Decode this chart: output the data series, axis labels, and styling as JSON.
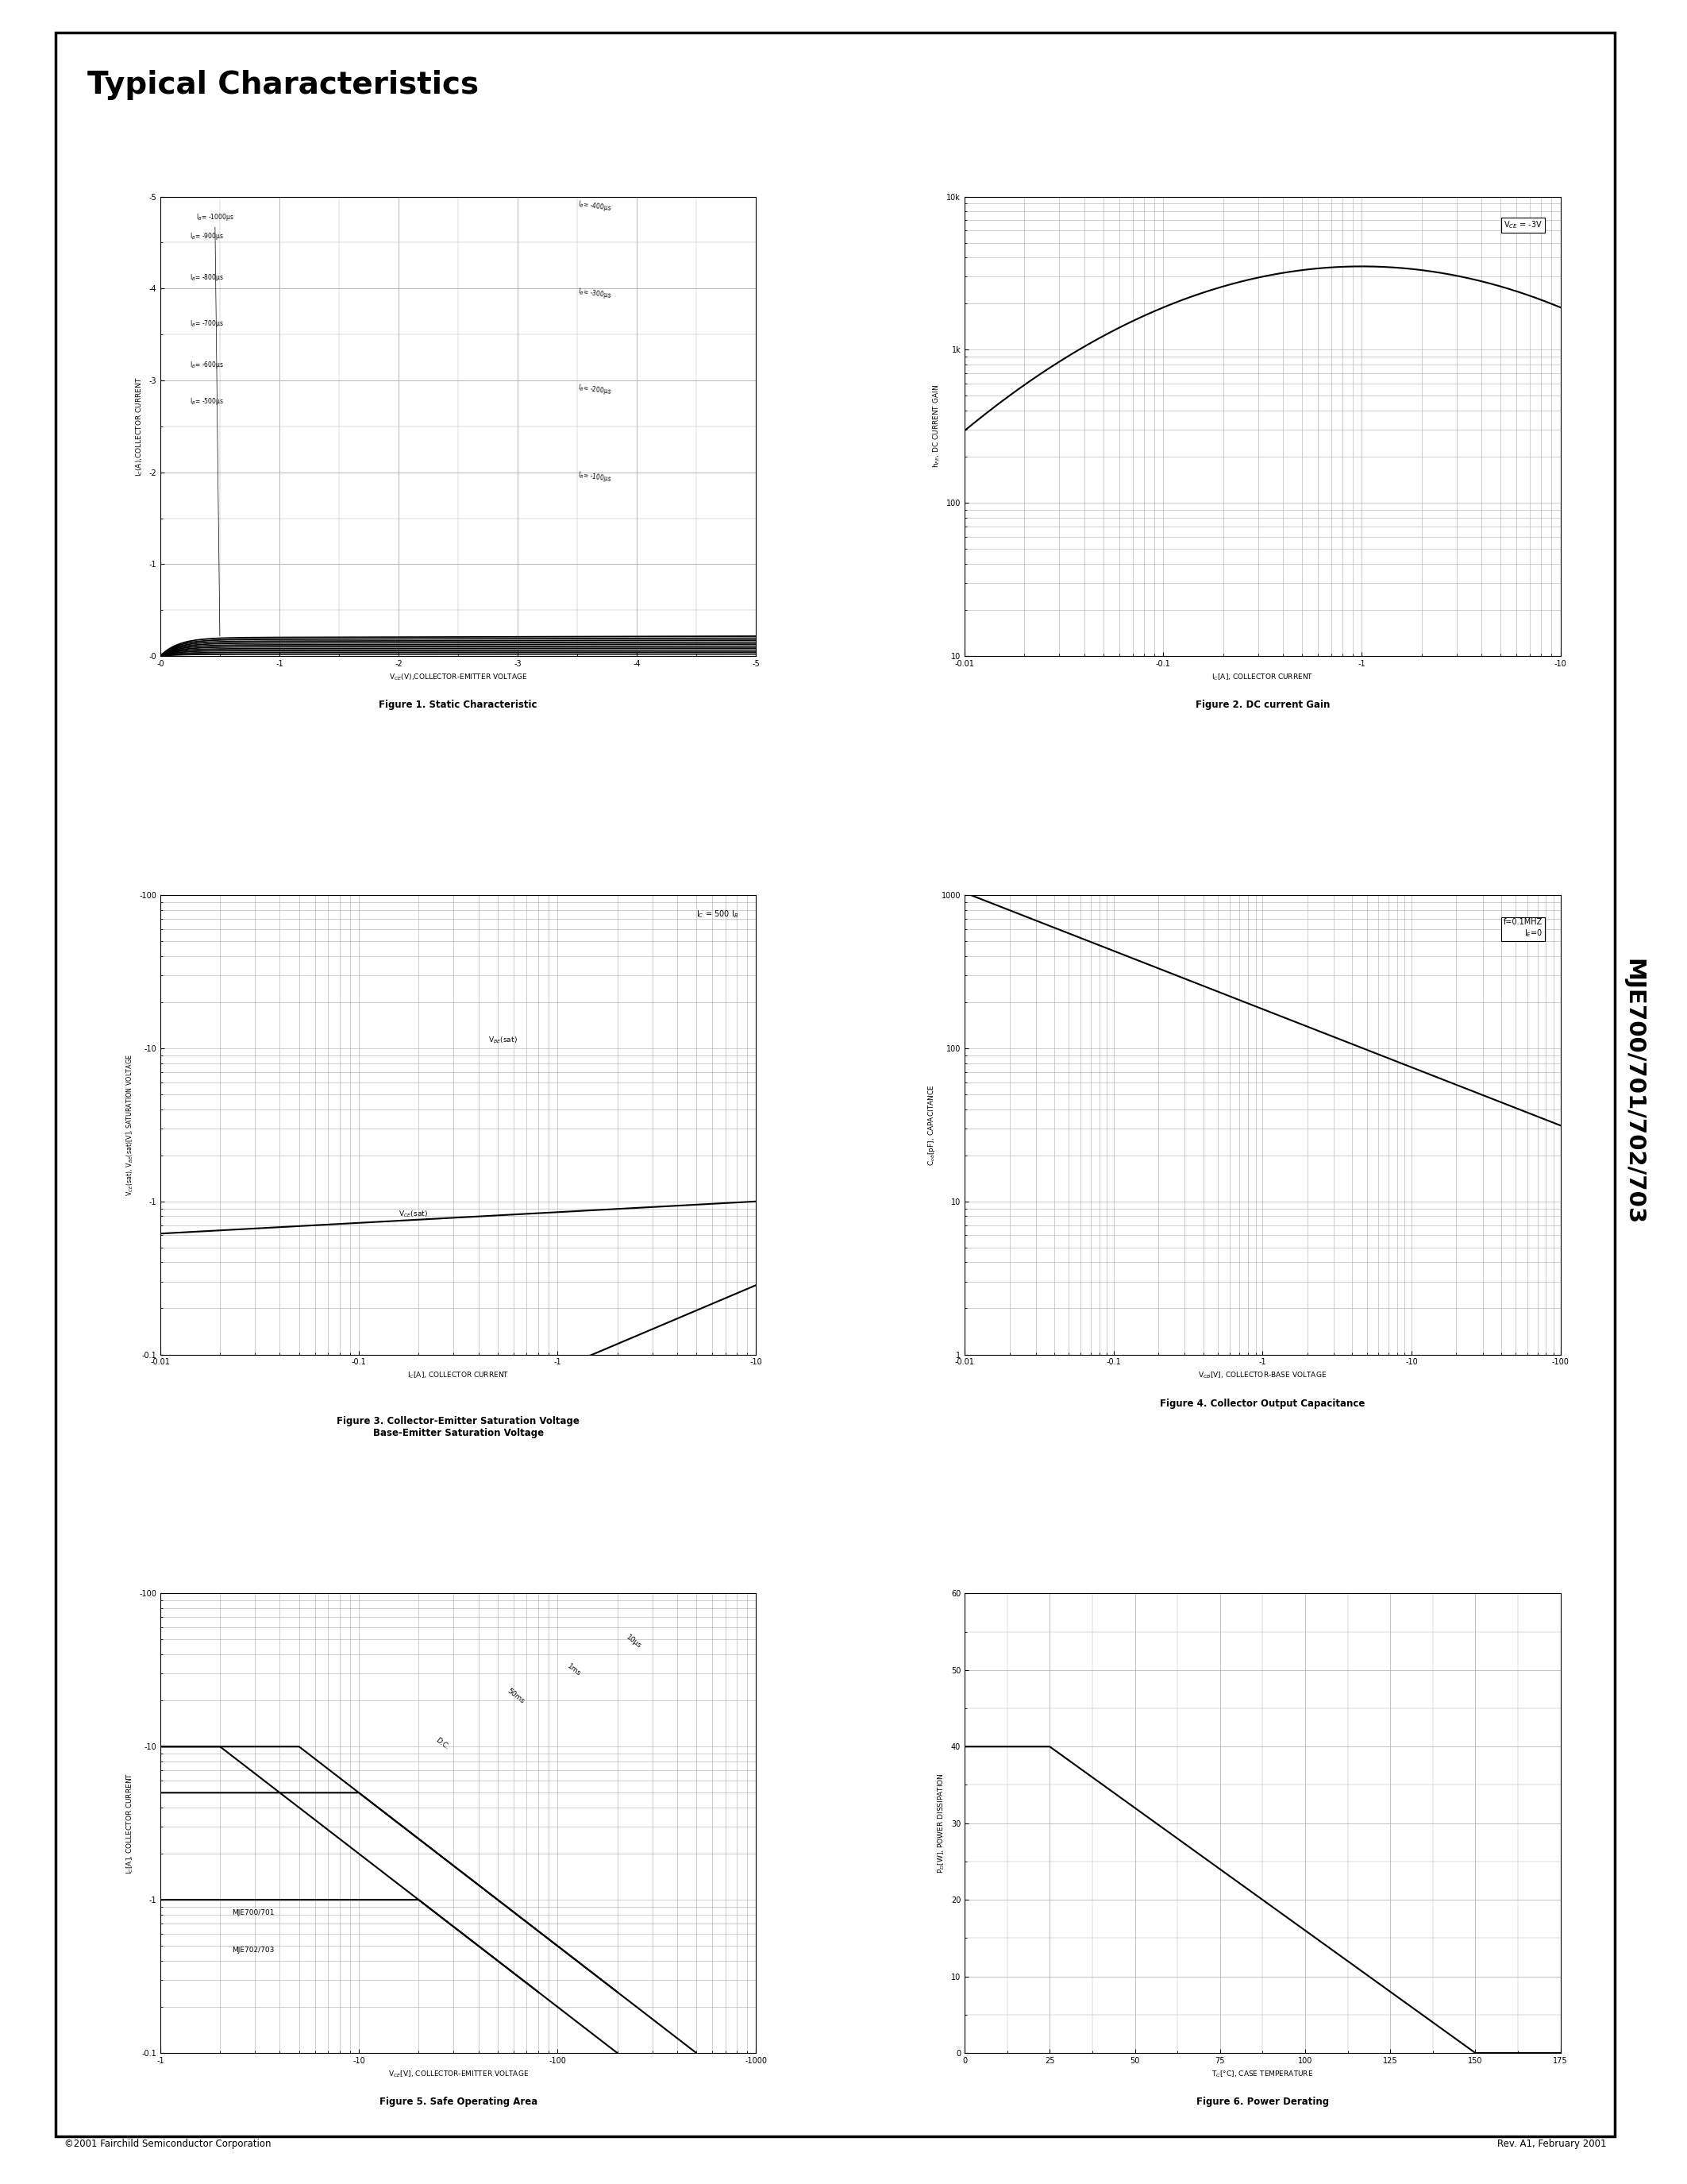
{
  "title": "Typical Characteristics",
  "side_label": "MJE700/701/702/703",
  "footer_left": "©2001 Fairchild Semiconductor Corporation",
  "footer_right": "Rev. A1, February 2001",
  "fig1_title": "Figure 1. Static Characteristic",
  "fig2_title": "Figure 2. DC current Gain",
  "fig3_title": "Figure 3. Collector-Emitter Saturation Voltage\nBase-Emitter Saturation Voltage",
  "fig4_title": "Figure 4. Collector Output Capacitance",
  "fig5_title": "Figure 5. Safe Operating Area",
  "fig6_title": "Figure 6. Power Derating",
  "bg_color": "#ffffff",
  "border_color": "#000000",
  "grid_color": "#aaaaaa",
  "curve_color": "#000000",
  "fig1_xlabel": "V$_{CE}$(V),COLLECTOR-EMITTER VOLTAGE",
  "fig1_ylabel": "I$_C$(A),COLLECTOR CURRENT",
  "fig2_xlabel": "I$_C$[A], COLLECTOR CURRENT",
  "fig2_ylabel": "h$_{FE}$, DC CURRENT GAIN",
  "fig3_xlabel": "I$_C$[A], COLLECTOR CURRENT",
  "fig3_ylabel": "V$_{CE}$(sat), V$_{BE}$(sat)[V], SATURATION VOLTAGE",
  "fig4_xlabel": "V$_{CB}$[V], COLLECTOR-BASE VOLTAGE",
  "fig4_ylabel": "C$_{ob}$[pF], CAPACITANCE",
  "fig5_xlabel": "V$_{CE}$[V], COLLECTOR-EMITTER VOLTAGE",
  "fig5_ylabel": "I$_C$[A], COLLECTOR CURRENT",
  "fig6_xlabel": "T$_C$[°C], CASE TEMPERATURE",
  "fig6_ylabel": "P$_D$[W], POWER DISSIPATION"
}
